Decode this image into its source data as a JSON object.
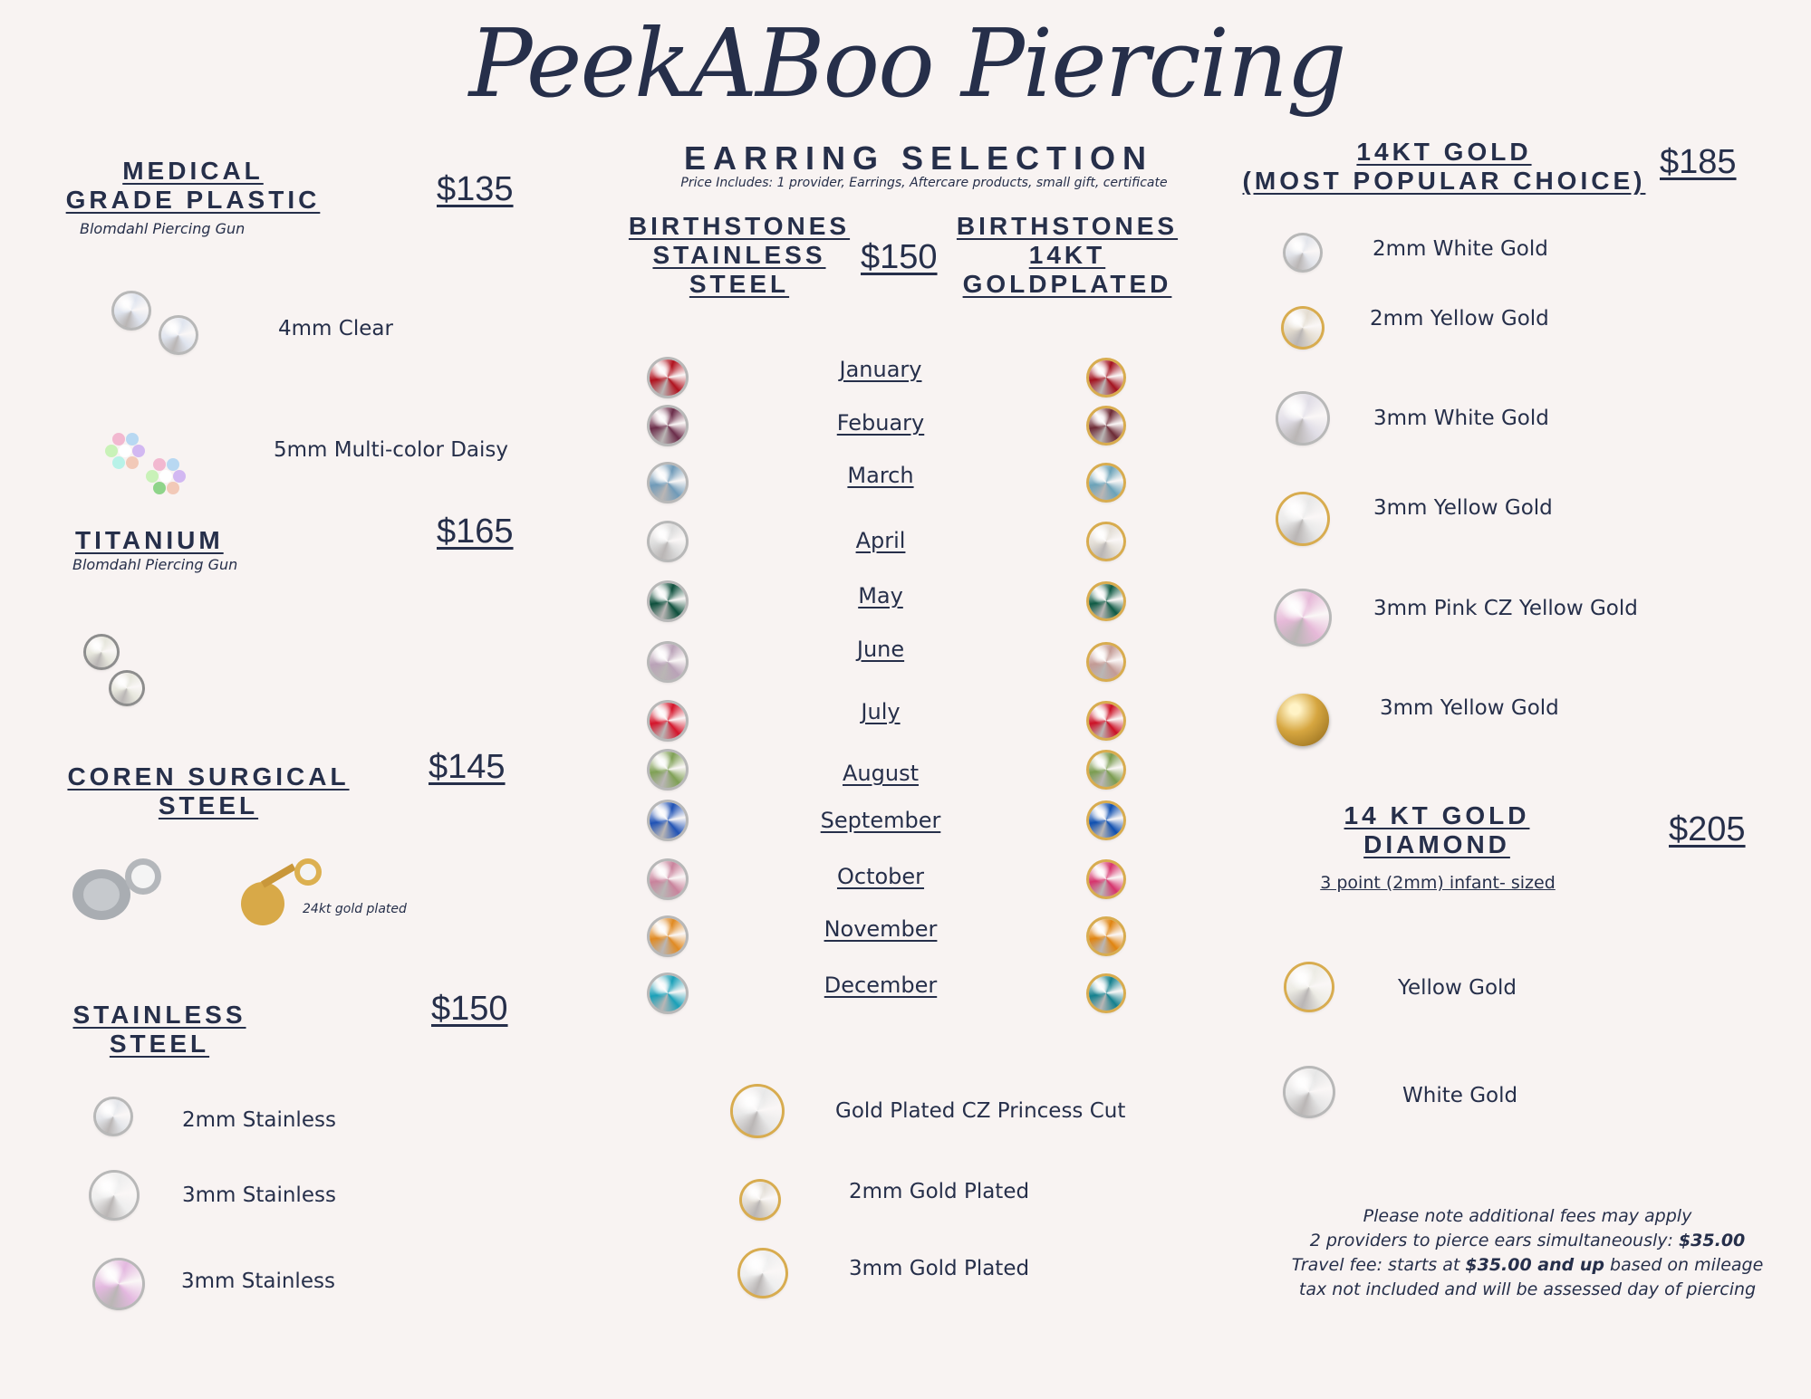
{
  "header": {
    "title": "PeekABoo Piercing",
    "subtitle": "EARRING SELECTION",
    "price_includes": "Price Includes: 1 provider, Earrings, Aftercare products, small gift, certificate"
  },
  "colors": {
    "navy": "#262f4a",
    "background": "#f8f3f2",
    "gold_prong": "#d8ac4f"
  },
  "medical": {
    "title_line1": "MEDICAL",
    "title_line2": "GRADE PLASTIC",
    "note": "Blomdahl Piercing Gun",
    "price": "$135",
    "items": [
      {
        "label": "4mm Clear",
        "color": "#dfe4ee"
      },
      {
        "label": "5mm Multi-color Daisy",
        "color": "#c9b6e0"
      }
    ]
  },
  "titanium": {
    "title": "TITANIUM",
    "note": "Blomdahl Piercing Gun",
    "price": "$165",
    "color": "#e6e6dc"
  },
  "coren": {
    "title_line1": "COREN SURGICAL",
    "title_line2": "STEEL",
    "price": "$145",
    "gold_note": "24kt gold plated"
  },
  "stainless": {
    "title_line1": "STAINLESS",
    "title_line2": "STEEL",
    "price": "$150",
    "items": [
      {
        "label": "2mm Stainless",
        "color": "#e4e6ea"
      },
      {
        "label": "3mm Stainless",
        "color": "#eeeeee"
      },
      {
        "label": "3mm Stainless",
        "color": "#e3b8df"
      }
    ]
  },
  "birthstones": {
    "steel_title": [
      "BIRTHSTONES",
      "STAINLESS",
      "STEEL"
    ],
    "price": "$150",
    "gold_title": [
      "BIRTHSTONES",
      "14KT",
      "GOLDPLATED"
    ],
    "months": [
      {
        "name": "January",
        "steel": "#b0121e",
        "gold": "#a3121f"
      },
      {
        "name": "Febuary",
        "steel": "#6b2d4a",
        "gold": "#6d2a35"
      },
      {
        "name": "March",
        "steel": "#6f9ab8",
        "gold": "#6aa2b8"
      },
      {
        "name": "April",
        "steel": "#dcdcdc",
        "gold": "#e2ddd5"
      },
      {
        "name": "May",
        "steel": "#0d4f3c",
        "gold": "#0e5a44"
      },
      {
        "name": "June",
        "steel": "#b9a2b7",
        "gold": "#c39a94"
      },
      {
        "name": "July",
        "steel": "#d4142a",
        "gold": "#cc1025"
      },
      {
        "name": "August",
        "steel": "#7fa055",
        "gold": "#7a9c50"
      },
      {
        "name": "September",
        "steel": "#1f52b5",
        "gold": "#0e4fb0"
      },
      {
        "name": "October",
        "steel": "#c9839c",
        "gold": "#d6336c"
      },
      {
        "name": "November",
        "steel": "#e08a22",
        "gold": "#e0840f"
      },
      {
        "name": "December",
        "steel": "#1aa0b8",
        "gold": "#13808e"
      }
    ],
    "gold_plated": [
      {
        "label": "Gold Plated CZ Princess Cut",
        "color": "#e8e8e8"
      },
      {
        "label": "2mm Gold Plated",
        "color": "#e2ddd5"
      },
      {
        "label": "3mm Gold Plated",
        "color": "#eeeeee"
      }
    ]
  },
  "gold14": {
    "title_line1": "14KT GOLD",
    "title_line2": "(MOST POPULAR CHOICE)",
    "price": "$185",
    "items": [
      {
        "label": "2mm White Gold",
        "color": "#e2e4ea"
      },
      {
        "label": "2mm Yellow Gold",
        "color": "#e3dcd0"
      },
      {
        "label": "3mm White Gold",
        "color": "#e0dde6"
      },
      {
        "label": "3mm Yellow Gold",
        "color": "#e8e8e8"
      },
      {
        "label": "3mm Pink CZ Yellow Gold",
        "color": "#e6b9d8"
      },
      {
        "label": "3mm Yellow Gold",
        "color": "#d6a640"
      }
    ]
  },
  "diamond": {
    "title_line1": "14 KT GOLD",
    "title_line2": "DIAMOND",
    "price": "$205",
    "note": "3 point (2mm) infant- sized",
    "items": [
      {
        "label": "Yellow Gold",
        "color": "#ecebe4"
      },
      {
        "label": "White Gold",
        "color": "#e6e6e6"
      }
    ]
  },
  "footer": {
    "line1": "Please note additional fees may apply",
    "line2_pre": "2 providers to pierce ears simultaneously: ",
    "line2_bold": "$35.00",
    "line3_pre": "Travel fee: starts at ",
    "line3_bold": "$35.00 and up",
    "line3_post": " based on mileage",
    "line4": "tax not included and will be assessed day of piercing"
  }
}
